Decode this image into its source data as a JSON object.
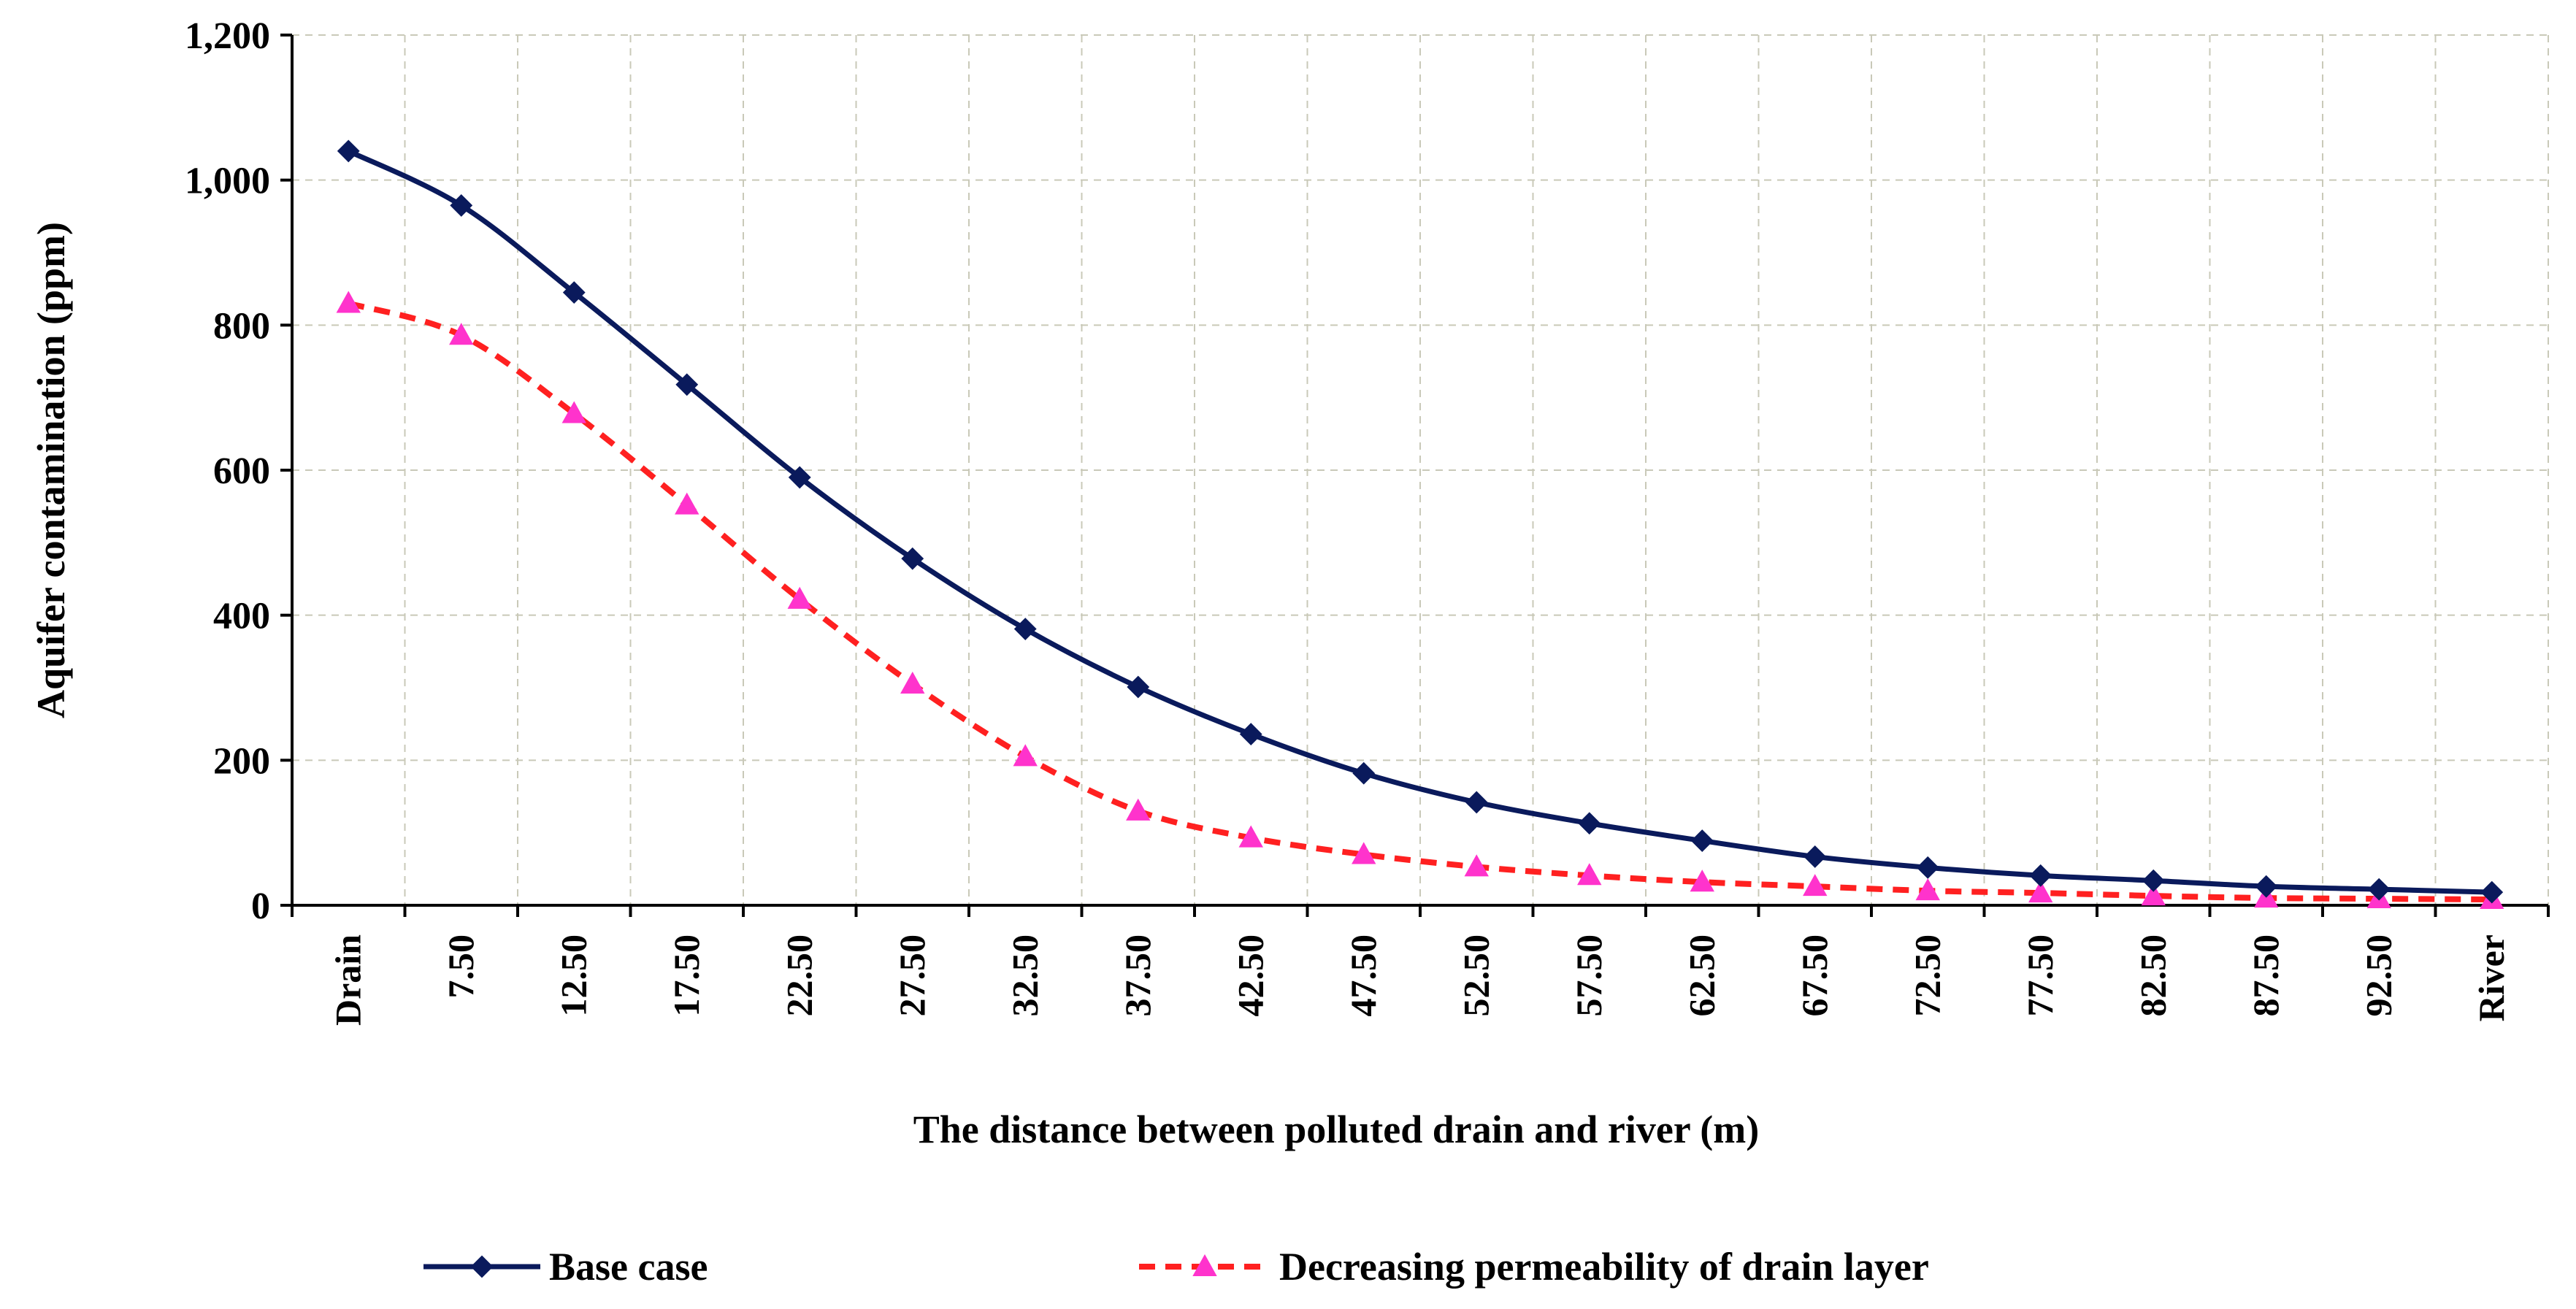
{
  "chart_data": {
    "type": "line",
    "title": "",
    "xlabel": "The distance between polluted drain and river (m)",
    "ylabel": "Aquifer contamination (ppm)",
    "ylim": [
      0,
      1200
    ],
    "yticks": [
      0,
      200,
      400,
      600,
      800,
      1000,
      1200
    ],
    "ytick_labels": [
      "0",
      "200",
      "400",
      "600",
      "800",
      "1,000",
      "1,200"
    ],
    "categories": [
      "Drain",
      "7.50",
      "12.50",
      "17.50",
      "22.50",
      "27.50",
      "32.50",
      "37.50",
      "42.50",
      "47.50",
      "52.50",
      "57.50",
      "62.50",
      "67.50",
      "72.50",
      "77.50",
      "82.50",
      "87.50",
      "92.50",
      "River"
    ],
    "grid": true,
    "legend_position": "bottom",
    "series": [
      {
        "name": "Base case",
        "color": "#0a1a5c",
        "line_style": "solid",
        "marker": "diamond",
        "values": [
          1040,
          965,
          845,
          718,
          590,
          478,
          381,
          301,
          236,
          182,
          142,
          113,
          89,
          67,
          52,
          41,
          34,
          26,
          22,
          18
        ]
      },
      {
        "name": "Decreasing permeability of drain layer",
        "color": "#ff2020",
        "marker_color": "#ff33cc",
        "line_style": "dashed",
        "marker": "triangle",
        "values": [
          830,
          786,
          678,
          552,
          422,
          305,
          205,
          130,
          93,
          70,
          53,
          41,
          32,
          26,
          20,
          17,
          13,
          10,
          9,
          8
        ]
      }
    ]
  }
}
